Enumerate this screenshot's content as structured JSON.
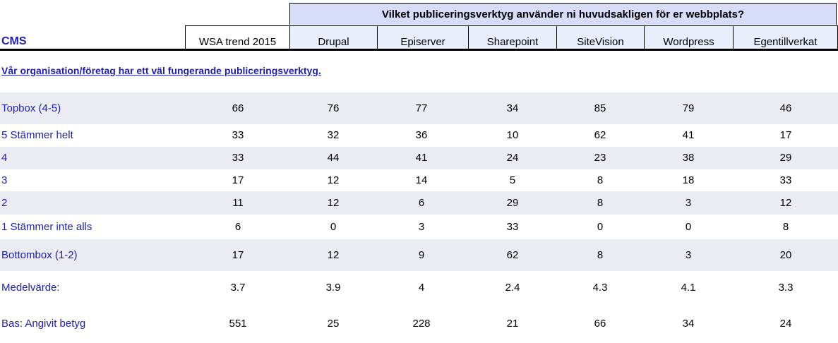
{
  "header": {
    "super_title": "Vilket publiceringsverktyg  använder ni huvudsakligen  för er webbplats?",
    "cms_label": "CMS",
    "columns": [
      "WSA trend 2015",
      "Drupal",
      "Episerver",
      "Sharepoint",
      "SiteVision",
      "Wordpress",
      "Egentillverkat"
    ]
  },
  "question": "Vår organisation/företag har ett väl fungerande publiceringsverktyg.",
  "colors": {
    "label_blue": "#1f1fa8",
    "header_fill": "#d7dcf8",
    "row_shade": "#ebebf3"
  },
  "rows": [
    {
      "label": "Topbox  (4-5)",
      "values": [
        "66",
        "76",
        "77",
        "34",
        "85",
        "79",
        "46"
      ],
      "shaded": true
    },
    {
      "label": "5 Stämmer  helt",
      "values": [
        "33",
        "32",
        "36",
        "10",
        "62",
        "41",
        "17"
      ],
      "shaded": false
    },
    {
      "label": "4",
      "values": [
        "33",
        "44",
        "41",
        "24",
        "23",
        "38",
        "29"
      ],
      "shaded": true
    },
    {
      "label": "3",
      "values": [
        "17",
        "12",
        "14",
        "5",
        "8",
        "18",
        "33"
      ],
      "shaded": false
    },
    {
      "label": "2",
      "values": [
        "11",
        "12",
        "6",
        "29",
        "8",
        "3",
        "12"
      ],
      "shaded": true
    },
    {
      "label": "1 Stämmer  inte alls",
      "values": [
        "6",
        "0",
        "3",
        "33",
        "0",
        "0",
        "8"
      ],
      "shaded": false
    },
    {
      "label": "Bottombox  (1-2)",
      "values": [
        "17",
        "12",
        "9",
        "62",
        "8",
        "3",
        "20"
      ],
      "shaded": true
    },
    {
      "label": "Medelvärde:",
      "values": [
        "3.7",
        "3.9",
        "4",
        "2.4",
        "4.3",
        "4.1",
        "3.3"
      ],
      "shaded": false
    },
    {
      "label": "Bas: Angivit betyg",
      "values": [
        "551",
        "25",
        "228",
        "21",
        "66",
        "34",
        "24"
      ],
      "shaded": false
    }
  ]
}
